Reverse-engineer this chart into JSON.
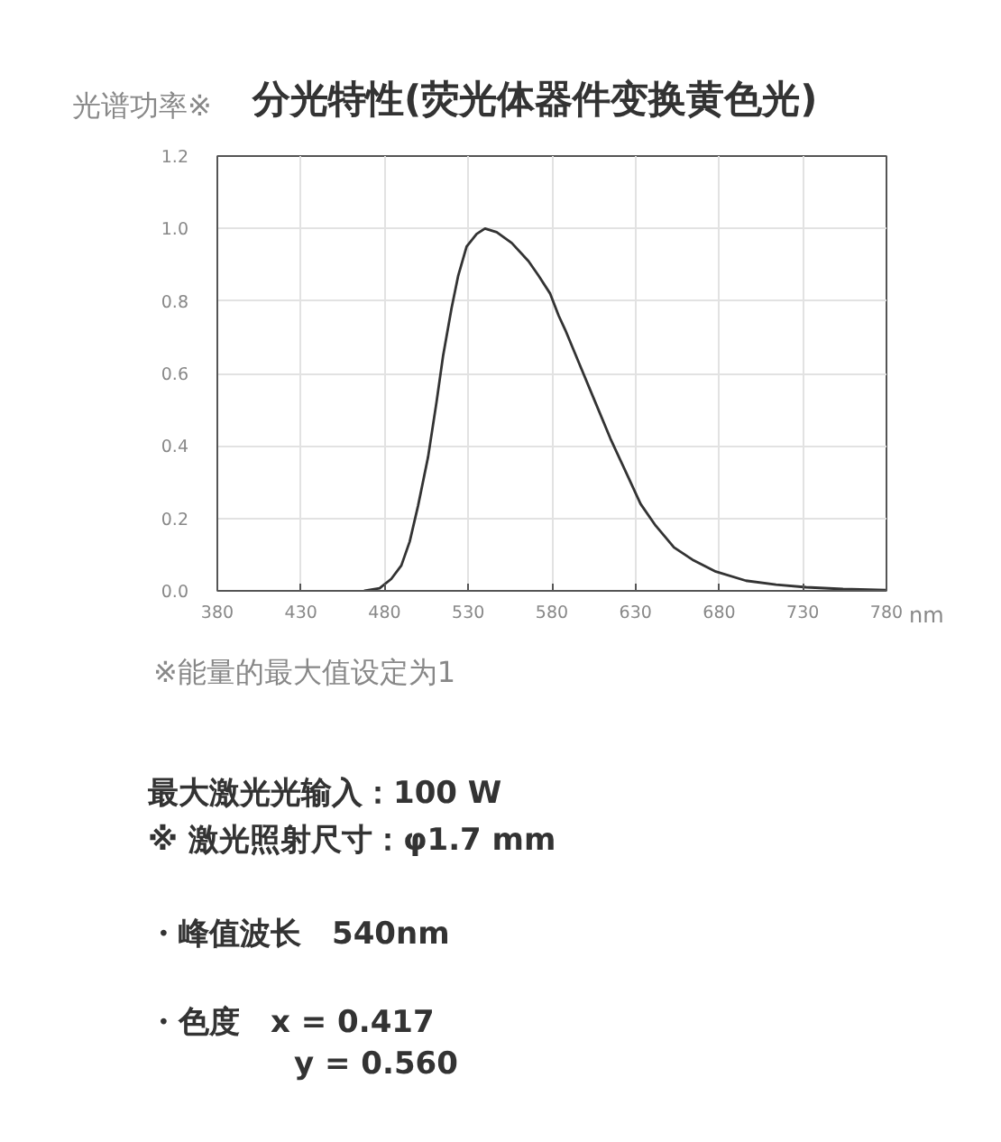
{
  "chart_data": {
    "type": "line",
    "title": "分光特性(荧光体器件变换黄色光)",
    "ylabel": "光谱功率※",
    "xlabel": "nm",
    "annotations": [
      "※能量的最大值设定为1",
      "最大激光光输入：100 W",
      "※ 激光照射尺寸：φ1.7 mm",
      "・峰值波长　540nm",
      "・色度　x = 0.417",
      "y = 0.560"
    ],
    "x": [
      468,
      477,
      484,
      490,
      495,
      500,
      506,
      511,
      515,
      520,
      524,
      529,
      535,
      540,
      547,
      556,
      566,
      572,
      579,
      584,
      588,
      597,
      606,
      615,
      624,
      633,
      642,
      653,
      664,
      678,
      696,
      714,
      732,
      754,
      780
    ],
    "values": [
      0,
      0.007,
      0.033,
      0.07,
      0.136,
      0.235,
      0.37,
      0.52,
      0.65,
      0.78,
      0.87,
      0.95,
      0.985,
      1.0,
      0.99,
      0.96,
      0.91,
      0.87,
      0.82,
      0.76,
      0.72,
      0.62,
      0.52,
      0.42,
      0.33,
      0.24,
      0.18,
      0.12,
      0.086,
      0.053,
      0.028,
      0.017,
      0.01,
      0.005,
      0.002
    ],
    "color": "#333333",
    "xlim": [
      380,
      780
    ],
    "ylim": [
      0,
      1.2
    ],
    "xticks": [
      380,
      430,
      480,
      530,
      580,
      630,
      680,
      730,
      780
    ],
    "yticks": [
      {
        "value": 0,
        "label": "0.0"
      },
      0.2,
      0.4,
      0.6,
      0.8,
      {
        "value": 1,
        "label": "1.0"
      },
      1.2
    ],
    "grid": true
  }
}
